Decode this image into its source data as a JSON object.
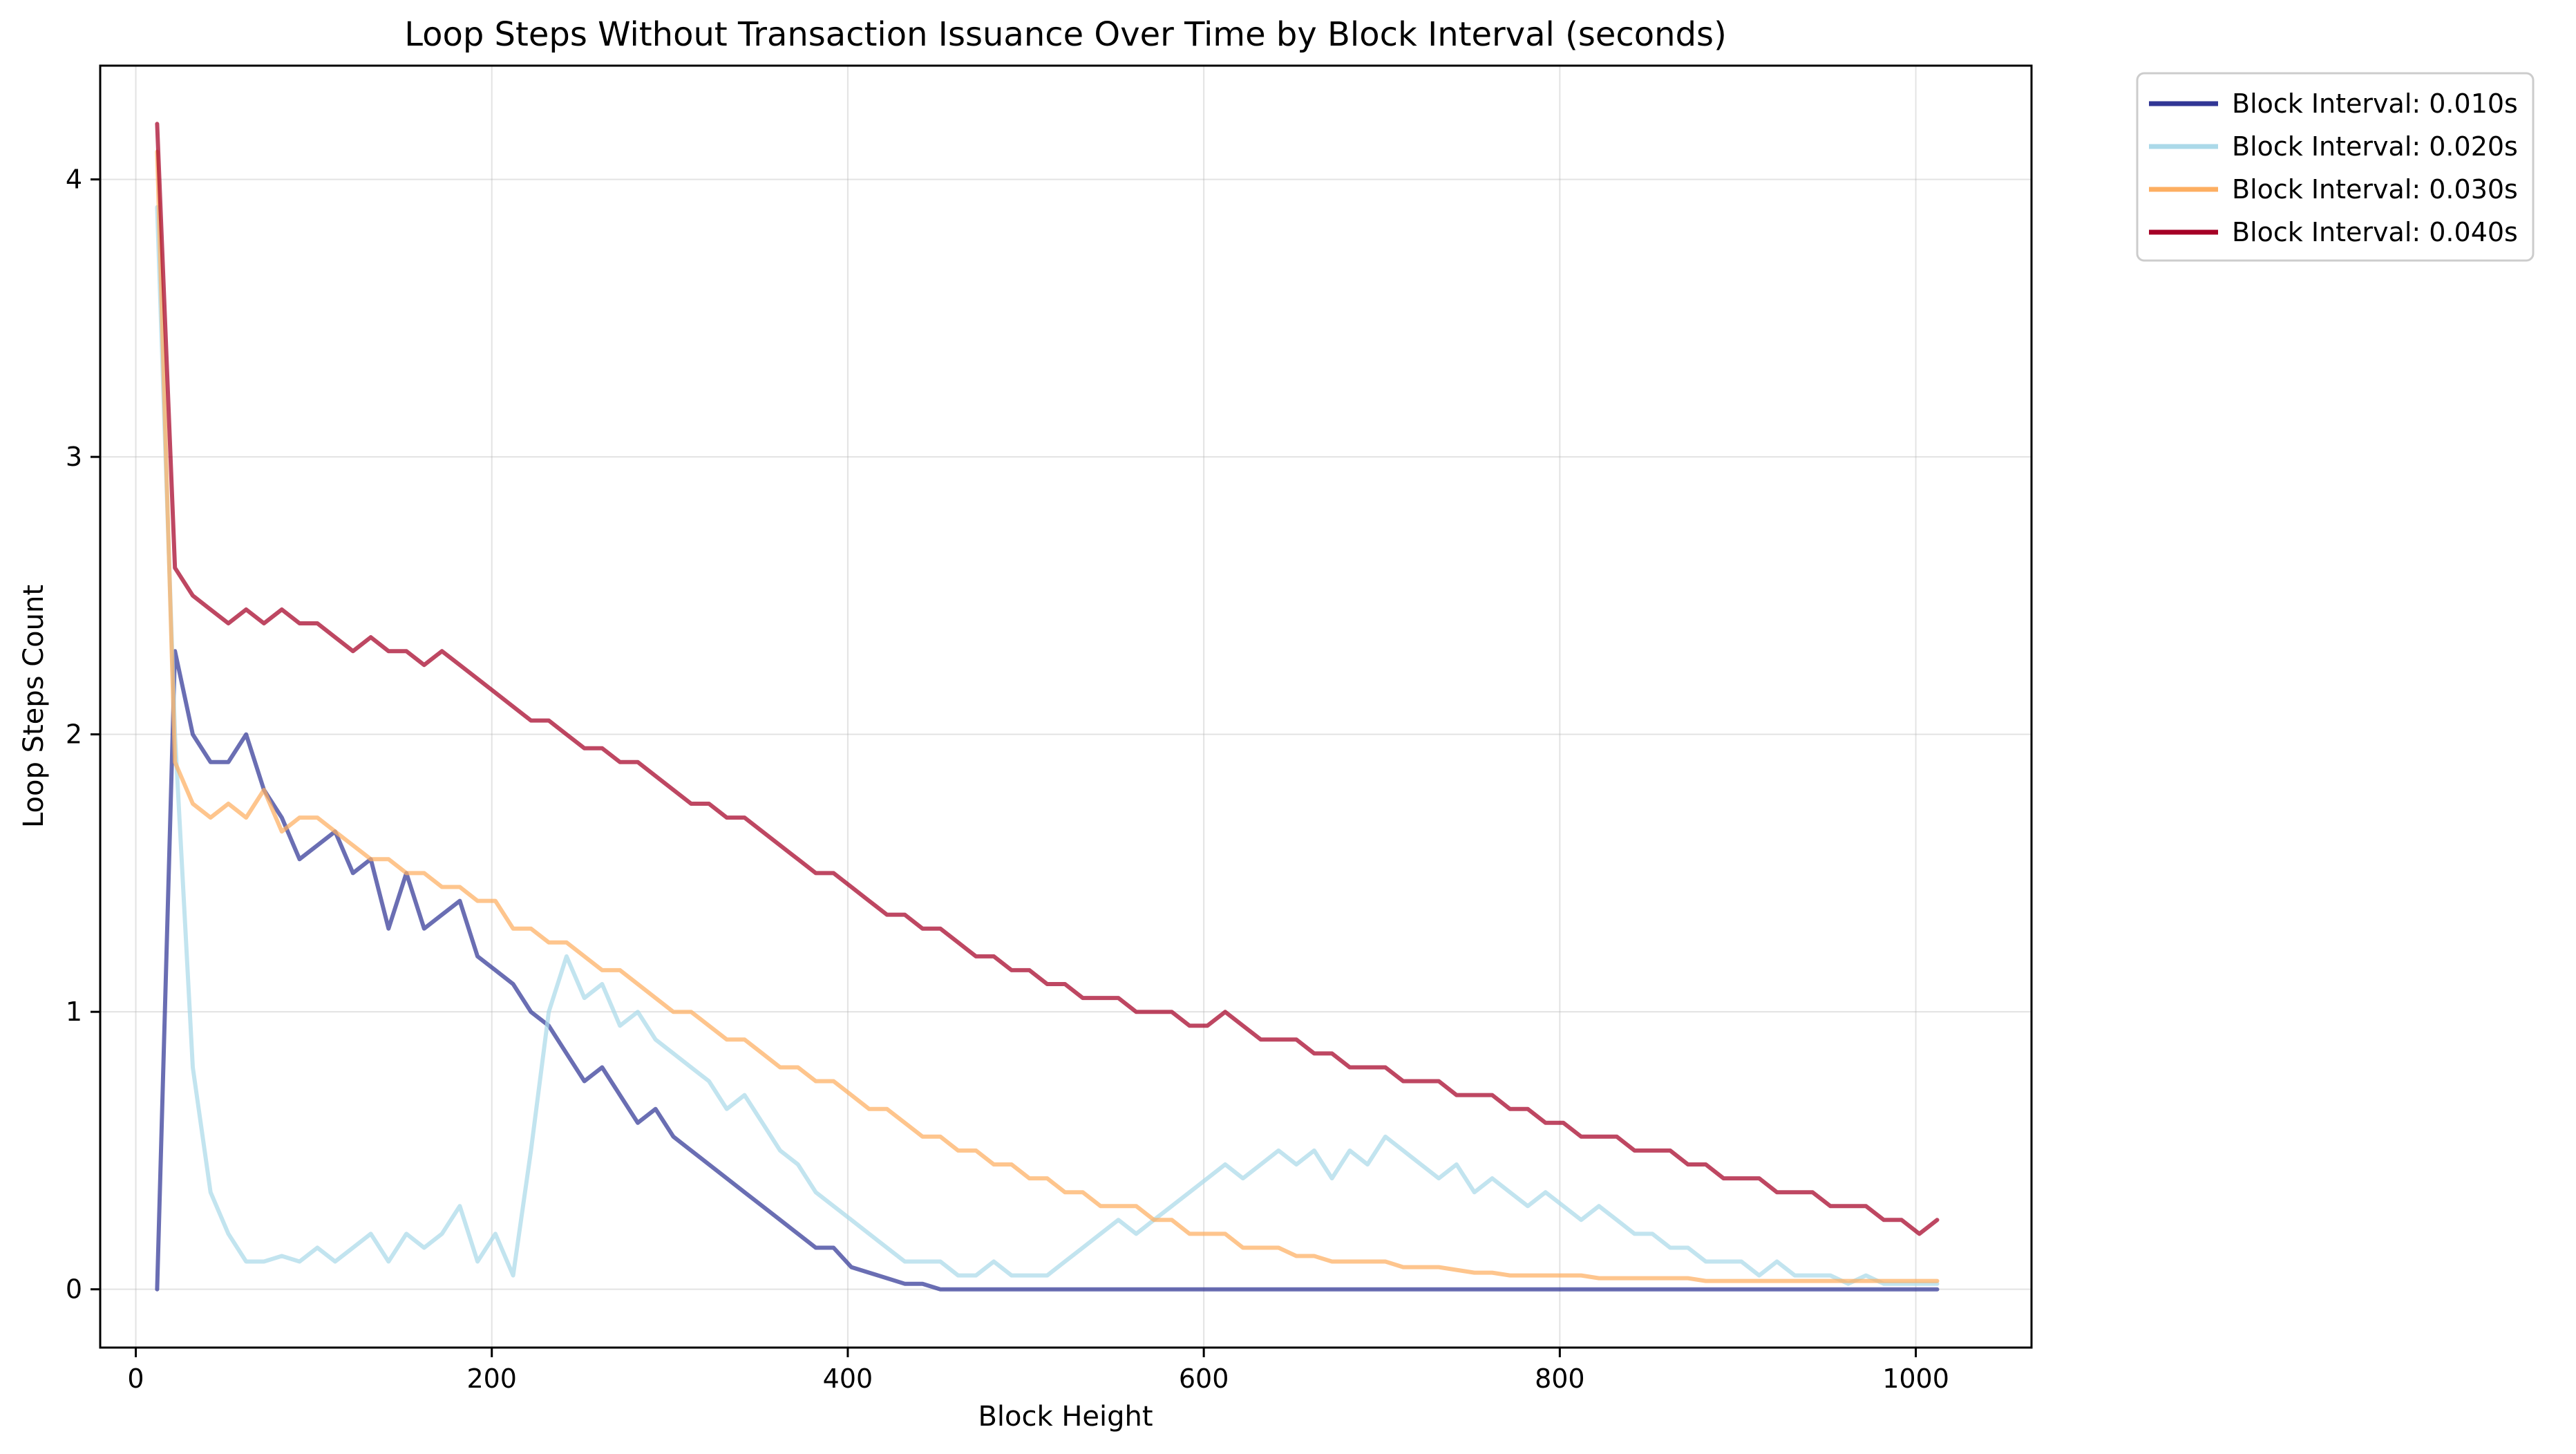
{
  "chart_data": {
    "type": "line",
    "title": "Loop Steps Without Transaction Issuance Over Time by Block Interval (seconds)",
    "xlabel": "Block Height",
    "ylabel": "Loop Steps Count",
    "xlim": [
      -20,
      1065
    ],
    "ylim": [
      -0.21,
      4.41
    ],
    "x_ticks": [
      0,
      200,
      400,
      600,
      800,
      1000
    ],
    "y_ticks": [
      0,
      1,
      2,
      3,
      4
    ],
    "grid": true,
    "legend_position": "outside-top-right",
    "x": [
      12,
      22,
      32,
      42,
      52,
      62,
      72,
      82,
      92,
      102,
      112,
      122,
      132,
      142,
      152,
      162,
      172,
      182,
      192,
      202,
      212,
      222,
      232,
      242,
      252,
      262,
      272,
      282,
      292,
      302,
      312,
      322,
      332,
      342,
      352,
      362,
      372,
      382,
      392,
      402,
      412,
      422,
      432,
      442,
      452,
      462,
      472,
      482,
      492,
      502,
      512,
      522,
      532,
      542,
      552,
      562,
      572,
      582,
      592,
      602,
      612,
      622,
      632,
      642,
      652,
      662,
      672,
      682,
      692,
      702,
      712,
      722,
      732,
      742,
      752,
      762,
      772,
      782,
      792,
      802,
      812,
      822,
      832,
      842,
      852,
      862,
      872,
      882,
      892,
      902,
      912,
      922,
      932,
      942,
      952,
      962,
      972,
      982,
      992,
      1002,
      1012
    ],
    "series": [
      {
        "name": "Block Interval: 0.010s",
        "color": "#313695",
        "values": [
          0,
          2.3,
          2.0,
          1.9,
          1.9,
          2.0,
          1.8,
          1.7,
          1.55,
          1.6,
          1.65,
          1.5,
          1.55,
          1.3,
          1.5,
          1.3,
          1.35,
          1.4,
          1.2,
          1.15,
          1.1,
          1.0,
          0.95,
          0.85,
          0.75,
          0.8,
          0.7,
          0.6,
          0.65,
          0.55,
          0.5,
          0.45,
          0.4,
          0.35,
          0.3,
          0.25,
          0.2,
          0.15,
          0.15,
          0.08,
          0.06,
          0.04,
          0.02,
          0.02,
          0,
          0,
          0,
          0,
          0,
          0,
          0,
          0,
          0,
          0,
          0,
          0,
          0,
          0,
          0,
          0,
          0,
          0,
          0,
          0,
          0,
          0,
          0,
          0,
          0,
          0,
          0,
          0,
          0,
          0,
          0,
          0,
          0,
          0,
          0,
          0,
          0,
          0,
          0,
          0,
          0,
          0,
          0,
          0,
          0,
          0,
          0,
          0,
          0,
          0,
          0,
          0,
          0,
          0,
          0,
          0,
          0
        ]
      },
      {
        "name": "Block Interval: 0.020s",
        "color": "#abd9e9",
        "values": [
          3.9,
          2.0,
          0.8,
          0.35,
          0.2,
          0.1,
          0.1,
          0.12,
          0.1,
          0.15,
          0.1,
          0.15,
          0.2,
          0.1,
          0.2,
          0.15,
          0.2,
          0.3,
          0.1,
          0.2,
          0.05,
          0.5,
          1.0,
          1.2,
          1.05,
          1.1,
          0.95,
          1.0,
          0.9,
          0.85,
          0.8,
          0.75,
          0.65,
          0.7,
          0.6,
          0.5,
          0.45,
          0.35,
          0.3,
          0.25,
          0.2,
          0.15,
          0.1,
          0.1,
          0.1,
          0.05,
          0.05,
          0.1,
          0.05,
          0.05,
          0.05,
          0.1,
          0.15,
          0.2,
          0.25,
          0.2,
          0.25,
          0.3,
          0.35,
          0.4,
          0.45,
          0.4,
          0.45,
          0.5,
          0.45,
          0.5,
          0.4,
          0.5,
          0.45,
          0.55,
          0.5,
          0.45,
          0.4,
          0.45,
          0.35,
          0.4,
          0.35,
          0.3,
          0.35,
          0.3,
          0.25,
          0.3,
          0.25,
          0.2,
          0.2,
          0.15,
          0.15,
          0.1,
          0.1,
          0.1,
          0.05,
          0.1,
          0.05,
          0.05,
          0.05,
          0.02,
          0.05,
          0.02,
          0.02,
          0.02,
          0.02
        ]
      },
      {
        "name": "Block Interval: 0.030s",
        "color": "#fdae61",
        "values": [
          4.1,
          1.9,
          1.75,
          1.7,
          1.75,
          1.7,
          1.8,
          1.65,
          1.7,
          1.7,
          1.65,
          1.6,
          1.55,
          1.55,
          1.5,
          1.5,
          1.45,
          1.45,
          1.4,
          1.4,
          1.3,
          1.3,
          1.25,
          1.25,
          1.2,
          1.15,
          1.15,
          1.1,
          1.05,
          1.0,
          1.0,
          0.95,
          0.9,
          0.9,
          0.85,
          0.8,
          0.8,
          0.75,
          0.75,
          0.7,
          0.65,
          0.65,
          0.6,
          0.55,
          0.55,
          0.5,
          0.5,
          0.45,
          0.45,
          0.4,
          0.4,
          0.35,
          0.35,
          0.3,
          0.3,
          0.3,
          0.25,
          0.25,
          0.2,
          0.2,
          0.2,
          0.15,
          0.15,
          0.15,
          0.12,
          0.12,
          0.1,
          0.1,
          0.1,
          0.1,
          0.08,
          0.08,
          0.08,
          0.07,
          0.06,
          0.06,
          0.05,
          0.05,
          0.05,
          0.05,
          0.05,
          0.04,
          0.04,
          0.04,
          0.04,
          0.04,
          0.04,
          0.03,
          0.03,
          0.03,
          0.03,
          0.03,
          0.03,
          0.03,
          0.03,
          0.03,
          0.03,
          0.03,
          0.03,
          0.03,
          0.03
        ]
      },
      {
        "name": "Block Interval: 0.040s",
        "color": "#a50026",
        "values": [
          4.2,
          2.6,
          2.5,
          2.45,
          2.4,
          2.45,
          2.4,
          2.45,
          2.4,
          2.4,
          2.35,
          2.3,
          2.35,
          2.3,
          2.3,
          2.25,
          2.3,
          2.25,
          2.2,
          2.15,
          2.1,
          2.05,
          2.05,
          2.0,
          1.95,
          1.95,
          1.9,
          1.9,
          1.85,
          1.8,
          1.75,
          1.75,
          1.7,
          1.7,
          1.65,
          1.6,
          1.55,
          1.5,
          1.5,
          1.45,
          1.4,
          1.35,
          1.35,
          1.3,
          1.3,
          1.25,
          1.2,
          1.2,
          1.15,
          1.15,
          1.1,
          1.1,
          1.05,
          1.05,
          1.05,
          1.0,
          1.0,
          1.0,
          0.95,
          0.95,
          1.0,
          0.95,
          0.9,
          0.9,
          0.9,
          0.85,
          0.85,
          0.8,
          0.8,
          0.8,
          0.75,
          0.75,
          0.75,
          0.7,
          0.7,
          0.7,
          0.65,
          0.65,
          0.6,
          0.6,
          0.55,
          0.55,
          0.55,
          0.5,
          0.5,
          0.5,
          0.45,
          0.45,
          0.4,
          0.4,
          0.4,
          0.35,
          0.35,
          0.35,
          0.3,
          0.3,
          0.3,
          0.25,
          0.25,
          0.2,
          0.25
        ]
      }
    ]
  }
}
